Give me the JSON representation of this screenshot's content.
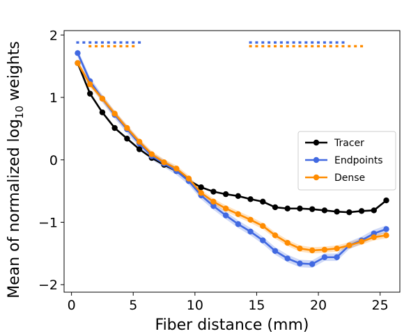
{
  "chart_data": {
    "type": "line",
    "xlabel": "Fiber distance (mm)",
    "ylabel_main": "Mean of normalized log",
    "ylabel_sub": "10",
    "ylabel_tail": " weights",
    "xlim": [
      -0.6,
      26.6
    ],
    "ylim": [
      -2.12,
      2.07
    ],
    "xticks": [
      0,
      5,
      10,
      15,
      20,
      25
    ],
    "yticks": [
      2,
      1,
      0,
      -1,
      -2
    ],
    "xtick_labels": [
      "0",
      "5",
      "10",
      "15",
      "20",
      "25"
    ],
    "ytick_labels": [
      "2",
      "1",
      "0",
      "−1",
      "−2"
    ],
    "legend_position": "center-right",
    "x": [
      0.5,
      1.5,
      2.5,
      3.5,
      4.5,
      5.5,
      6.5,
      7.5,
      8.5,
      9.5,
      10.5,
      11.5,
      12.5,
      13.5,
      14.5,
      15.5,
      16.5,
      17.5,
      18.5,
      19.5,
      20.5,
      21.5,
      22.5,
      23.5,
      24.5,
      25.5
    ],
    "series": [
      {
        "name": "Tracer",
        "color": "#000000",
        "values": [
          1.55,
          1.06,
          0.76,
          0.51,
          0.34,
          0.17,
          0.03,
          -0.08,
          -0.18,
          -0.33,
          -0.44,
          -0.51,
          -0.55,
          -0.58,
          -0.63,
          -0.67,
          -0.76,
          -0.78,
          -0.78,
          -0.79,
          -0.81,
          -0.83,
          -0.84,
          -0.82,
          -0.81,
          -0.65
        ],
        "band": 0.01
      },
      {
        "name": "Endpoints",
        "color": "#4169e1",
        "values": [
          1.71,
          1.26,
          0.98,
          0.72,
          0.49,
          0.26,
          0.06,
          -0.06,
          -0.18,
          -0.34,
          -0.57,
          -0.74,
          -0.89,
          -1.03,
          -1.15,
          -1.29,
          -1.46,
          -1.58,
          -1.66,
          -1.67,
          -1.56,
          -1.56,
          -1.37,
          -1.29,
          -1.18,
          -1.11
        ],
        "band": 0.06
      },
      {
        "name": "Dense",
        "color": "#ff8c00",
        "values": [
          1.55,
          1.21,
          0.98,
          0.74,
          0.51,
          0.29,
          0.09,
          -0.04,
          -0.14,
          -0.3,
          -0.53,
          -0.67,
          -0.78,
          -0.87,
          -0.96,
          -1.06,
          -1.21,
          -1.33,
          -1.42,
          -1.45,
          -1.44,
          -1.42,
          -1.37,
          -1.31,
          -1.24,
          -1.21
        ],
        "band": 0.05
      }
    ],
    "significance_markers": [
      {
        "series": "Endpoints",
        "y": 1.88,
        "x": [
          0.5,
          1.0,
          1.5,
          2.0,
          2.5,
          3.0,
          3.5,
          4.0,
          4.5,
          5.0,
          5.5,
          14.5,
          15.0,
          15.5,
          16.0,
          16.5,
          17.0,
          17.5,
          18.0,
          18.5,
          19.0,
          19.5,
          20.0,
          20.5,
          21.0,
          21.5,
          22.0
        ]
      },
      {
        "series": "Dense",
        "y": 1.82,
        "x": [
          1.5,
          2.0,
          2.5,
          3.0,
          3.5,
          4.0,
          4.5,
          5.0,
          14.5,
          15.0,
          15.5,
          16.0,
          16.5,
          17.0,
          17.5,
          18.0,
          18.5,
          19.0,
          19.5,
          20.0,
          20.5,
          21.0,
          21.5,
          22.0,
          22.5,
          23.0,
          23.5
        ]
      }
    ]
  }
}
